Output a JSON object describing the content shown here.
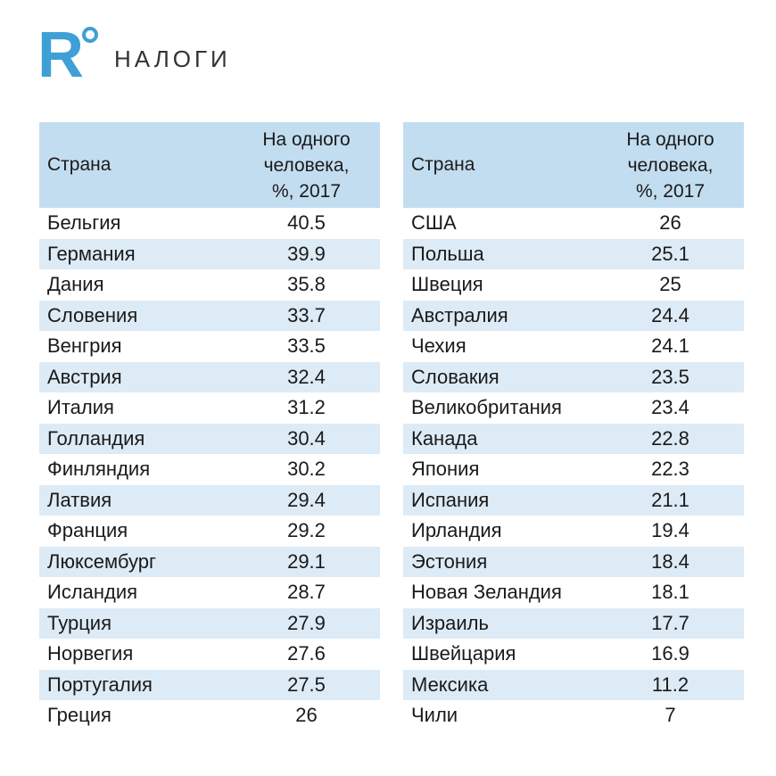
{
  "brand": {
    "logo_letter": "R",
    "title": "НАЛОГИ"
  },
  "colors": {
    "accent": "#3ea0d6",
    "header_bg": "#c3ddf0",
    "stripe_bg": "#ddebf6"
  },
  "table_left": {
    "header_country": "Страна",
    "header_value_lines": [
      "На одного",
      "человека,",
      "%, 2017"
    ],
    "rows": [
      {
        "country": "Бельгия",
        "value": "40.5"
      },
      {
        "country": "Германия",
        "value": "39.9"
      },
      {
        "country": "Дания",
        "value": "35.8"
      },
      {
        "country": "Словения",
        "value": "33.7"
      },
      {
        "country": "Венгрия",
        "value": "33.5"
      },
      {
        "country": "Австрия",
        "value": "32.4"
      },
      {
        "country": "Италия",
        "value": "31.2"
      },
      {
        "country": "Голландия",
        "value": "30.4"
      },
      {
        "country": "Финляндия",
        "value": "30.2"
      },
      {
        "country": "Латвия",
        "value": "29.4"
      },
      {
        "country": "Франция",
        "value": "29.2"
      },
      {
        "country": "Люксембург",
        "value": "29.1"
      },
      {
        "country": "Исландия",
        "value": "28.7"
      },
      {
        "country": "Турция",
        "value": "27.9"
      },
      {
        "country": "Норвегия",
        "value": "27.6"
      },
      {
        "country": "Португалия",
        "value": "27.5"
      },
      {
        "country": "Греция",
        "value": "26"
      }
    ]
  },
  "table_right": {
    "header_country": "Страна",
    "header_value_lines": [
      "На одного",
      "человека,",
      "%, 2017"
    ],
    "rows": [
      {
        "country": "США",
        "value": "26"
      },
      {
        "country": "Польша",
        "value": "25.1"
      },
      {
        "country": "Швеция",
        "value": "25"
      },
      {
        "country": "Австралия",
        "value": "24.4"
      },
      {
        "country": "Чехия",
        "value": "24.1"
      },
      {
        "country": "Словакия",
        "value": "23.5"
      },
      {
        "country": "Великобритания",
        "value": "23.4"
      },
      {
        "country": "Канада",
        "value": "22.8"
      },
      {
        "country": "Япония",
        "value": "22.3"
      },
      {
        "country": "Испания",
        "value": "21.1"
      },
      {
        "country": "Ирландия",
        "value": "19.4"
      },
      {
        "country": "Эстония",
        "value": "18.4"
      },
      {
        "country": "Новая Зеландия",
        "value": "18.1"
      },
      {
        "country": "Израиль",
        "value": "17.7"
      },
      {
        "country": "Швейцария",
        "value": "16.9"
      },
      {
        "country": "Мексика",
        "value": "11.2"
      },
      {
        "country": "Чили",
        "value": "7"
      }
    ]
  }
}
